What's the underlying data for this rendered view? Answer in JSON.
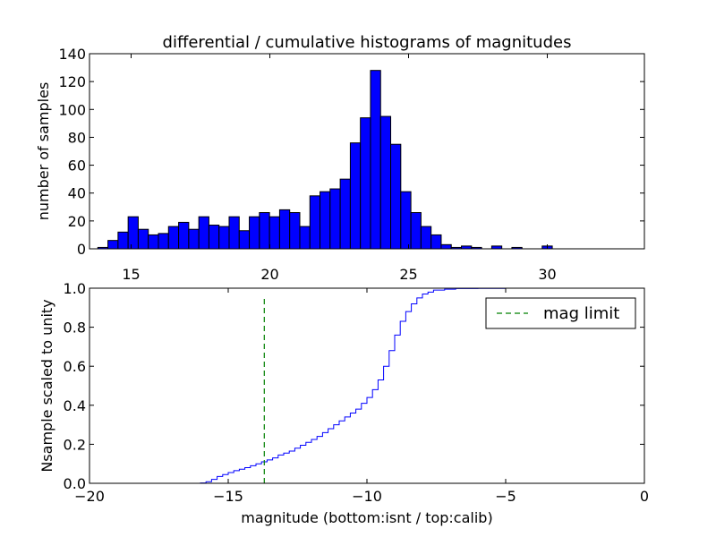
{
  "colors": {
    "bar_fill": "#0000ff",
    "bar_edge": "#000000",
    "cdf_line": "#0000ff",
    "limit_line": "#008000",
    "axes": "#000000",
    "background": "#ffffff"
  },
  "chart_data": [
    {
      "type": "bar",
      "title": "differential / cumulative histograms of magnitudes",
      "xlabel": "",
      "ylabel": "number of samples",
      "xlim": [
        13.5,
        33.5
      ],
      "ylim": [
        0,
        140
      ],
      "xticks": [
        "15",
        "20",
        "25",
        "30"
      ],
      "yticks": [
        "0",
        "20",
        "40",
        "60",
        "80",
        "100",
        "120",
        "140"
      ],
      "xaxis_position": "top",
      "bin_start": 13.8,
      "bin_width": 0.364,
      "values": [
        1,
        6,
        12,
        23,
        14,
        10,
        11,
        16,
        19,
        14,
        23,
        17,
        16,
        23,
        13,
        23,
        26,
        23,
        28,
        26,
        16,
        38,
        41,
        43,
        50,
        76,
        94,
        128,
        95,
        75,
        41,
        26,
        16,
        10,
        3,
        1,
        2,
        1,
        0,
        2,
        0,
        1,
        0,
        0,
        2
      ]
    },
    {
      "type": "line",
      "drawstyle": "steps",
      "xlabel": "magnitude (bottom:isnt / top:calib)",
      "ylabel": "Nsample scaled to unity",
      "xlim": [
        -20,
        0
      ],
      "ylim": [
        0.0,
        1.0
      ],
      "xticks": [
        "−20",
        "−15",
        "−10",
        "−5",
        "0"
      ],
      "yticks": [
        "0.0",
        "0.2",
        "0.4",
        "0.6",
        "0.8",
        "1.0"
      ],
      "series": [
        {
          "name": "cumulative",
          "x": [
            -20,
            -16.0,
            -15.8,
            -15.6,
            -15.4,
            -15.2,
            -15.0,
            -14.8,
            -14.6,
            -14.4,
            -14.2,
            -14.0,
            -13.8,
            -13.6,
            -13.4,
            -13.2,
            -13.0,
            -12.8,
            -12.6,
            -12.4,
            -12.2,
            -12.0,
            -11.8,
            -11.6,
            -11.4,
            -11.2,
            -11.0,
            -10.8,
            -10.6,
            -10.4,
            -10.2,
            -10.0,
            -9.8,
            -9.6,
            -9.4,
            -9.2,
            -9.0,
            -8.8,
            -8.6,
            -8.4,
            -8.2,
            -8.0,
            -7.8,
            -7.6,
            -7.2,
            -6.8,
            -6.0,
            -5.0,
            0
          ],
          "y": [
            0.0,
            0.002,
            0.008,
            0.02,
            0.035,
            0.045,
            0.055,
            0.065,
            0.072,
            0.08,
            0.09,
            0.1,
            0.11,
            0.12,
            0.13,
            0.145,
            0.155,
            0.165,
            0.18,
            0.195,
            0.21,
            0.225,
            0.24,
            0.26,
            0.28,
            0.3,
            0.32,
            0.34,
            0.36,
            0.38,
            0.41,
            0.44,
            0.48,
            0.53,
            0.6,
            0.68,
            0.76,
            0.83,
            0.88,
            0.92,
            0.95,
            0.97,
            0.98,
            0.99,
            0.995,
            0.998,
            0.999,
            1.0,
            1.0
          ]
        },
        {
          "name": "mag limit",
          "style": "dashed",
          "x": [
            -13.7,
            -13.7
          ],
          "y": [
            0.0,
            0.95
          ]
        }
      ],
      "legend": {
        "label": "mag limit",
        "position": "top-right"
      }
    }
  ]
}
